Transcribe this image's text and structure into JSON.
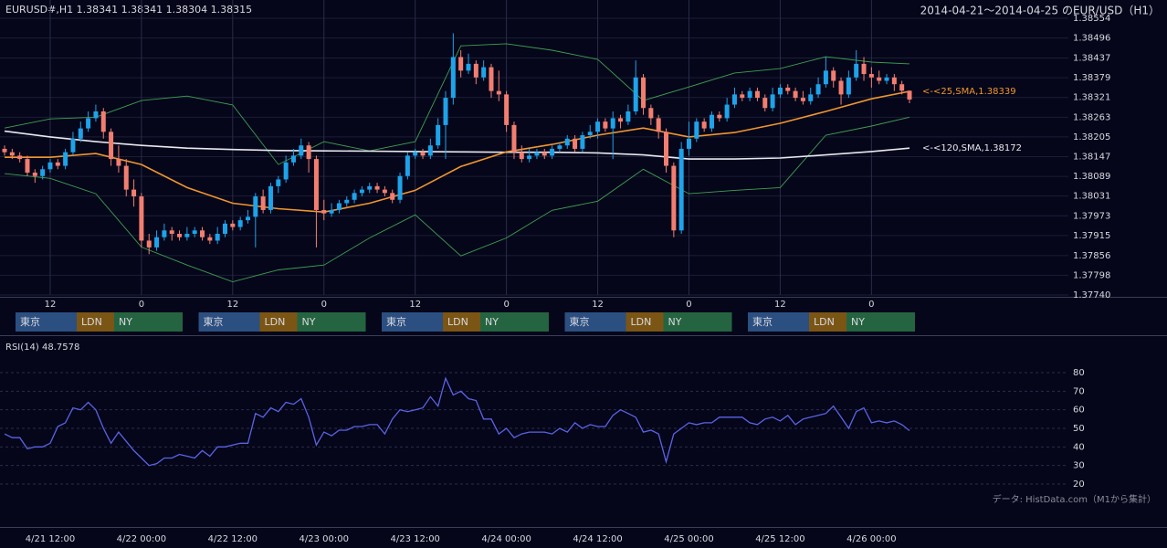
{
  "header": {
    "range": "2014-04-21～2014-04-25 のEUR/USD（H1）"
  },
  "source": "データ: HistData.com（M1から集計）",
  "sessions": [
    [
      "東京",
      "LDN",
      "NY"
    ],
    [
      "東京",
      "LDN",
      "NY"
    ],
    [
      "東京",
      "LDN",
      "NY"
    ],
    [
      "東京",
      "LDN",
      "NY"
    ],
    [
      "東京",
      "LDN",
      "NY"
    ]
  ],
  "session_colors": [
    "#2b4f80",
    "#7a5514",
    "#256440"
  ],
  "chart_data": [
    {
      "type": "candlestick",
      "title": "EURUSD#,H1 1.38341 1.38341 1.38304 1.38315",
      "up_color": "#1ea3ea",
      "down_color": "#f27e70",
      "x": [
        0,
        1,
        2,
        3,
        4,
        5,
        6,
        7,
        8,
        9,
        10,
        11,
        12,
        13,
        14,
        15,
        16,
        17,
        18,
        19,
        20,
        21,
        22,
        23,
        24,
        25,
        26,
        27,
        28,
        29,
        30,
        31,
        32,
        33,
        34,
        35,
        36,
        37,
        38,
        39,
        40,
        41,
        42,
        43,
        44,
        45,
        46,
        47,
        48,
        49,
        50,
        51,
        52,
        53,
        54,
        55,
        56,
        57,
        58,
        59,
        60,
        61,
        62,
        63,
        64,
        65,
        66,
        67,
        68,
        69,
        70,
        71,
        72,
        73,
        74,
        75,
        76,
        77,
        78,
        79,
        80,
        81,
        82,
        83,
        84,
        85,
        86,
        87,
        88,
        89,
        90,
        91,
        92,
        93,
        94,
        95,
        96,
        97,
        98,
        99,
        100,
        101,
        102,
        103,
        104,
        105,
        106,
        107,
        108,
        109,
        110,
        111,
        112,
        113,
        114,
        115,
        116,
        117,
        118,
        119
      ],
      "open": [
        1.3817,
        1.3816,
        1.3815,
        1.3814,
        1.381,
        1.3809,
        1.3811,
        1.3813,
        1.3812,
        1.3816,
        1.382,
        1.3823,
        1.3826,
        1.3828,
        1.3822,
        1.3814,
        1.3812,
        1.3805,
        1.3803,
        1.379,
        1.3788,
        1.3791,
        1.3793,
        1.3792,
        1.3791,
        1.3792,
        1.3793,
        1.3791,
        1.379,
        1.3792,
        1.3795,
        1.3794,
        1.3796,
        1.3797,
        1.3803,
        1.3799,
        1.3806,
        1.3808,
        1.3813,
        1.3815,
        1.3818,
        1.3814,
        1.3799,
        1.3798,
        1.3799,
        1.3801,
        1.3802,
        1.3804,
        1.3805,
        1.3806,
        1.3805,
        1.3804,
        1.3802,
        1.3809,
        1.3815,
        1.3816,
        1.3815,
        1.3818,
        1.3824,
        1.3832,
        1.3844,
        1.384,
        1.3842,
        1.3838,
        1.3841,
        1.3834,
        1.3833,
        1.3824,
        1.3816,
        1.3814,
        1.3815,
        1.3816,
        1.3815,
        1.3817,
        1.3818,
        1.382,
        1.3817,
        1.3821,
        1.3822,
        1.3825,
        1.3823,
        1.3826,
        1.3825,
        1.3828,
        1.3838,
        1.3829,
        1.3826,
        1.3822,
        1.3812,
        1.3793,
        1.3817,
        1.382,
        1.3825,
        1.3823,
        1.3827,
        1.3826,
        1.383,
        1.3833,
        1.3832,
        1.3834,
        1.3832,
        1.3829,
        1.3833,
        1.3835,
        1.3834,
        1.3832,
        1.3831,
        1.3833,
        1.3836,
        1.384,
        1.3837,
        1.3833,
        1.3838,
        1.3842,
        1.3839,
        1.3838,
        1.3837,
        1.3838,
        1.3836,
        1.38341
      ],
      "high": [
        1.3818,
        1.3817,
        1.3816,
        1.3815,
        1.3811,
        1.3812,
        1.3814,
        1.3814,
        1.3817,
        1.3822,
        1.3825,
        1.3828,
        1.383,
        1.3829,
        1.3823,
        1.3818,
        1.3814,
        1.3808,
        1.3804,
        1.3792,
        1.3793,
        1.3795,
        1.3794,
        1.3793,
        1.3794,
        1.3794,
        1.3794,
        1.3792,
        1.3794,
        1.3796,
        1.3796,
        1.3797,
        1.3799,
        1.3804,
        1.3805,
        1.3807,
        1.3809,
        1.3815,
        1.3817,
        1.382,
        1.3819,
        1.3815,
        1.3802,
        1.3801,
        1.3802,
        1.3803,
        1.3805,
        1.3806,
        1.3807,
        1.3807,
        1.3806,
        1.3805,
        1.381,
        1.3816,
        1.3817,
        1.3817,
        1.382,
        1.3826,
        1.3834,
        1.3851,
        1.3846,
        1.3845,
        1.3843,
        1.3843,
        1.3842,
        1.384,
        1.3834,
        1.3825,
        1.3818,
        1.3817,
        1.3817,
        1.3817,
        1.3818,
        1.3819,
        1.3821,
        1.3821,
        1.3822,
        1.3824,
        1.3826,
        1.3826,
        1.3828,
        1.3827,
        1.383,
        1.3843,
        1.3839,
        1.383,
        1.3827,
        1.3823,
        1.3813,
        1.3819,
        1.3825,
        1.3826,
        1.3826,
        1.3828,
        1.3828,
        1.3832,
        1.3835,
        1.3834,
        1.3835,
        1.3835,
        1.3833,
        1.3835,
        1.3836,
        1.3836,
        1.3835,
        1.3834,
        1.3835,
        1.3838,
        1.3844,
        1.3841,
        1.3838,
        1.384,
        1.3846,
        1.3844,
        1.3841,
        1.384,
        1.3839,
        1.3839,
        1.3837,
        1.38341
      ],
      "low": [
        1.3815,
        1.3814,
        1.3813,
        1.3809,
        1.3807,
        1.3808,
        1.381,
        1.3811,
        1.3811,
        1.3815,
        1.3819,
        1.3822,
        1.3825,
        1.382,
        1.3812,
        1.381,
        1.3803,
        1.38,
        1.3788,
        1.3786,
        1.3787,
        1.379,
        1.379,
        1.379,
        1.379,
        1.3791,
        1.379,
        1.3789,
        1.3789,
        1.3791,
        1.3793,
        1.3793,
        1.3795,
        1.3788,
        1.3798,
        1.3798,
        1.3804,
        1.3807,
        1.3812,
        1.3814,
        1.381,
        1.3788,
        1.3796,
        1.3797,
        1.3798,
        1.38,
        1.3801,
        1.3803,
        1.3804,
        1.3804,
        1.3803,
        1.3801,
        1.3801,
        1.3808,
        1.3814,
        1.3814,
        1.3814,
        1.3817,
        1.3814,
        1.383,
        1.3838,
        1.3839,
        1.3836,
        1.3837,
        1.3832,
        1.3831,
        1.3822,
        1.3814,
        1.3813,
        1.3813,
        1.3814,
        1.3814,
        1.3814,
        1.3816,
        1.3817,
        1.3816,
        1.3816,
        1.382,
        1.382,
        1.3822,
        1.3814,
        1.3823,
        1.3824,
        1.3827,
        1.3827,
        1.3824,
        1.382,
        1.381,
        1.3791,
        1.3792,
        1.3815,
        1.3819,
        1.3822,
        1.3822,
        1.3825,
        1.3825,
        1.3829,
        1.3831,
        1.3831,
        1.3831,
        1.3828,
        1.3828,
        1.3832,
        1.3833,
        1.3831,
        1.383,
        1.383,
        1.3832,
        1.3835,
        1.3835,
        1.383,
        1.3832,
        1.3837,
        1.3837,
        1.3835,
        1.3836,
        1.3836,
        1.3834,
        1.3833,
        1.38304
      ],
      "close": [
        1.3816,
        1.3815,
        1.3814,
        1.381,
        1.3809,
        1.3811,
        1.3813,
        1.3812,
        1.3816,
        1.382,
        1.3823,
        1.3826,
        1.3828,
        1.3822,
        1.3814,
        1.3812,
        1.3805,
        1.3803,
        1.379,
        1.3788,
        1.3791,
        1.3793,
        1.3792,
        1.3791,
        1.3792,
        1.3793,
        1.3791,
        1.379,
        1.3792,
        1.3795,
        1.3794,
        1.3796,
        1.3797,
        1.3803,
        1.3799,
        1.3806,
        1.3808,
        1.3813,
        1.3815,
        1.3818,
        1.3814,
        1.3799,
        1.3798,
        1.3799,
        1.3801,
        1.3802,
        1.3804,
        1.3805,
        1.3806,
        1.3805,
        1.3804,
        1.3802,
        1.3809,
        1.3815,
        1.3816,
        1.3815,
        1.3818,
        1.3824,
        1.3832,
        1.3844,
        1.384,
        1.3842,
        1.3838,
        1.3841,
        1.3834,
        1.3833,
        1.3824,
        1.3816,
        1.3814,
        1.3815,
        1.3816,
        1.3815,
        1.3817,
        1.3818,
        1.382,
        1.3817,
        1.3821,
        1.3822,
        1.3825,
        1.3823,
        1.3826,
        1.3825,
        1.3828,
        1.3838,
        1.3829,
        1.3826,
        1.3822,
        1.3812,
        1.3793,
        1.3817,
        1.382,
        1.3825,
        1.3823,
        1.3827,
        1.3826,
        1.383,
        1.3833,
        1.3832,
        1.3834,
        1.3832,
        1.3829,
        1.3833,
        1.3835,
        1.3834,
        1.3832,
        1.3831,
        1.3833,
        1.3836,
        1.384,
        1.3837,
        1.3833,
        1.3838,
        1.3842,
        1.3839,
        1.3838,
        1.3837,
        1.3838,
        1.3836,
        1.38341,
        1.38315
      ],
      "lines": [
        {
          "color": "#3f9f52",
          "x": [
            0,
            6,
            12,
            18,
            24,
            30,
            36,
            42,
            48,
            54,
            60,
            66,
            72,
            78,
            84,
            90,
            96,
            102,
            108,
            114,
            119
          ],
          "values": [
            1.38231,
            1.38258,
            1.38263,
            1.38312,
            1.38325,
            1.38299,
            1.38124,
            1.38191,
            1.38164,
            1.38191,
            1.38473,
            1.38479,
            1.3846,
            1.38433,
            1.38312,
            1.38352,
            1.38393,
            1.38406,
            1.38441,
            1.38425,
            1.3842
          ]
        },
        {
          "color": "#3f9f52",
          "x": [
            0,
            6,
            12,
            18,
            24,
            30,
            36,
            42,
            48,
            54,
            60,
            66,
            72,
            78,
            84,
            90,
            96,
            102,
            108,
            114,
            119
          ],
          "values": [
            1.38097,
            1.38083,
            1.38038,
            1.37881,
            1.37828,
            1.37779,
            1.37814,
            1.37828,
            1.37908,
            1.37976,
            1.37855,
            1.37908,
            1.37989,
            1.38016,
            1.3811,
            1.38038,
            1.38048,
            1.38056,
            1.3821,
            1.38237,
            1.38263
          ]
        },
        {
          "color": "#e8e8ee",
          "label": "<-<120,SMA,1.38172",
          "x": [
            0,
            6,
            12,
            18,
            24,
            30,
            36,
            42,
            48,
            54,
            60,
            66,
            72,
            78,
            84,
            90,
            96,
            102,
            108,
            114,
            119
          ],
          "values": [
            1.38222,
            1.38205,
            1.38191,
            1.3818,
            1.38172,
            1.38168,
            1.38165,
            1.38164,
            1.38163,
            1.38162,
            1.38161,
            1.3816,
            1.3816,
            1.38158,
            1.38152,
            1.3814,
            1.3814,
            1.38143,
            1.38152,
            1.38162,
            1.38172
          ]
        },
        {
          "color": "#f0962e",
          "label": "<-<25,SMA,1.38339",
          "x": [
            0,
            6,
            12,
            18,
            24,
            30,
            36,
            42,
            48,
            54,
            60,
            66,
            72,
            78,
            84,
            90,
            96,
            102,
            108,
            114,
            119
          ],
          "values": [
            1.38145,
            1.38145,
            1.38156,
            1.38124,
            1.38056,
            1.3801,
            1.37994,
            1.37984,
            1.3801,
            1.38048,
            1.38118,
            1.38161,
            1.38183,
            1.3821,
            1.38231,
            1.38205,
            1.38218,
            1.38245,
            1.3828,
            1.38317,
            1.38339
          ]
        }
      ],
      "xlim": [
        0,
        119
      ],
      "xticks": [
        {
          "value": 6,
          "label": "12"
        },
        {
          "value": 18,
          "label": "0"
        },
        {
          "value": 30,
          "label": "12"
        },
        {
          "value": 42,
          "label": "0"
        },
        {
          "value": 54,
          "label": "12"
        },
        {
          "value": 66,
          "label": "0"
        },
        {
          "value": 78,
          "label": "12"
        },
        {
          "value": 90,
          "label": "0"
        },
        {
          "value": 102,
          "label": "12"
        },
        {
          "value": 114,
          "label": "0"
        }
      ],
      "ylim": [
        1.3774,
        1.38554
      ],
      "yticks": [
        1.38554,
        1.38496,
        1.38437,
        1.38379,
        1.38321,
        1.38263,
        1.38205,
        1.38147,
        1.38089,
        1.38031,
        1.37973,
        1.37915,
        1.37856,
        1.37798,
        {
          "value": 1.3774,
          "label": "1.37740"
        }
      ],
      "grid": true
    },
    {
      "type": "line",
      "title": "RSI(14) 48.7578",
      "color": "#5b63e6",
      "x": [
        0,
        1,
        2,
        3,
        4,
        5,
        6,
        7,
        8,
        9,
        10,
        11,
        12,
        13,
        14,
        15,
        16,
        17,
        18,
        19,
        20,
        21,
        22,
        23,
        24,
        25,
        26,
        27,
        28,
        29,
        30,
        31,
        32,
        33,
        34,
        35,
        36,
        37,
        38,
        39,
        40,
        41,
        42,
        43,
        44,
        45,
        46,
        47,
        48,
        49,
        50,
        51,
        52,
        53,
        54,
        55,
        56,
        57,
        58,
        59,
        60,
        61,
        62,
        63,
        64,
        65,
        66,
        67,
        68,
        69,
        70,
        71,
        72,
        73,
        74,
        75,
        76,
        77,
        78,
        79,
        80,
        81,
        82,
        83,
        84,
        85,
        86,
        87,
        88,
        89,
        90,
        91,
        92,
        93,
        94,
        95,
        96,
        97,
        98,
        99,
        100,
        101,
        102,
        103,
        104,
        105,
        106,
        107,
        108,
        109,
        110,
        111,
        112,
        113,
        114,
        115,
        116,
        117,
        118,
        119
      ],
      "values": [
        47,
        45,
        45,
        39,
        40,
        40,
        42,
        51,
        53,
        61,
        60,
        64,
        60,
        50,
        42,
        48,
        43,
        38,
        34,
        30,
        31,
        34,
        34,
        36,
        35,
        34,
        38,
        35,
        40,
        40,
        41,
        42,
        42,
        58,
        56,
        61,
        59,
        64,
        63,
        66,
        56,
        41,
        48,
        46,
        49,
        49,
        51,
        51,
        52,
        52,
        47,
        55,
        60,
        59,
        60,
        61,
        67,
        62,
        77,
        68,
        70,
        66,
        65,
        55,
        55,
        47,
        50,
        45,
        47,
        48,
        48,
        48,
        47,
        50,
        48,
        53,
        50,
        52,
        51,
        51,
        57,
        60,
        58,
        56,
        48,
        49,
        47,
        32,
        47,
        50,
        53,
        52,
        53,
        53,
        56,
        56,
        56,
        56,
        53,
        52,
        55,
        56,
        54,
        57,
        52,
        55,
        56,
        57,
        58,
        62,
        56,
        50,
        59,
        61,
        53,
        54,
        53,
        54,
        52,
        48.7578
      ],
      "xlim": [
        0,
        119
      ],
      "xticks": [
        {
          "value": 6,
          "label": "4/21 12:00"
        },
        {
          "value": 18,
          "label": "4/22 00:00"
        },
        {
          "value": 30,
          "label": "4/22 12:00"
        },
        {
          "value": 42,
          "label": "4/23 00:00"
        },
        {
          "value": 54,
          "label": "4/23 12:00"
        },
        {
          "value": 66,
          "label": "4/24 00:00"
        },
        {
          "value": 78,
          "label": "4/24 12:00"
        },
        {
          "value": 90,
          "label": "4/25 00:00"
        },
        {
          "value": 102,
          "label": "4/25 12:00"
        },
        {
          "value": 114,
          "label": "4/26 00:00"
        }
      ],
      "ylim": [
        20,
        80
      ],
      "yticks": [
        80,
        70,
        60,
        50,
        40,
        30,
        20
      ],
      "grid": true
    }
  ]
}
